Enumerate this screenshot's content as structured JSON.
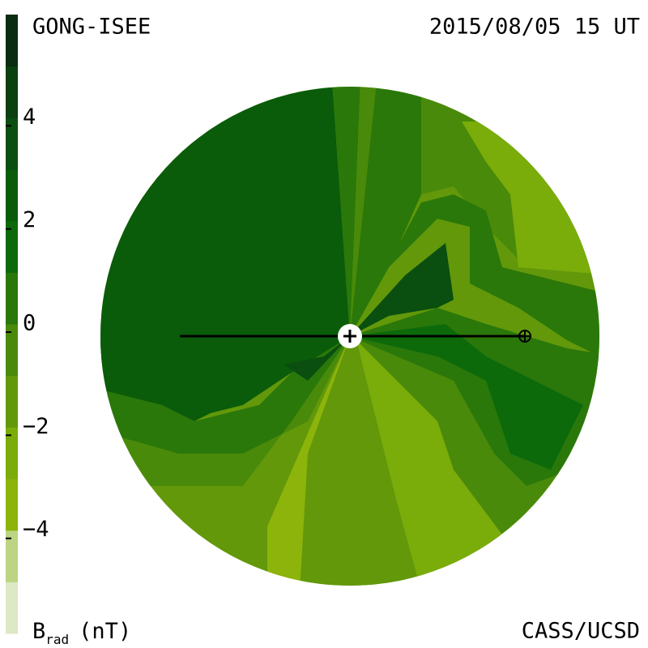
{
  "header": {
    "left": "GONG-ISEE",
    "right": "2015/08/05 15 UT"
  },
  "footer": {
    "right": "CASS/UCSD"
  },
  "chart_data": {
    "type": "colorbar",
    "label": {
      "symbol": "B",
      "subscript": "rad",
      "unit": "(nT)"
    },
    "ylim": [
      -6,
      6
    ],
    "yticks": [
      4,
      2,
      0,
      {
        "value": -2,
        "label": "−2"
      },
      {
        "value": -4,
        "label": "−4"
      }
    ],
    "colors": [
      "#dde8c4",
      "#bcd484",
      "#8cb40a",
      "#7aac0a",
      "#62980a",
      "#4a8a0a",
      "#2a780a",
      "#0d6a0a",
      "#0a5c0a",
      "#0a4e10",
      "#0a3f10",
      "#0a2c10"
    ]
  }
}
